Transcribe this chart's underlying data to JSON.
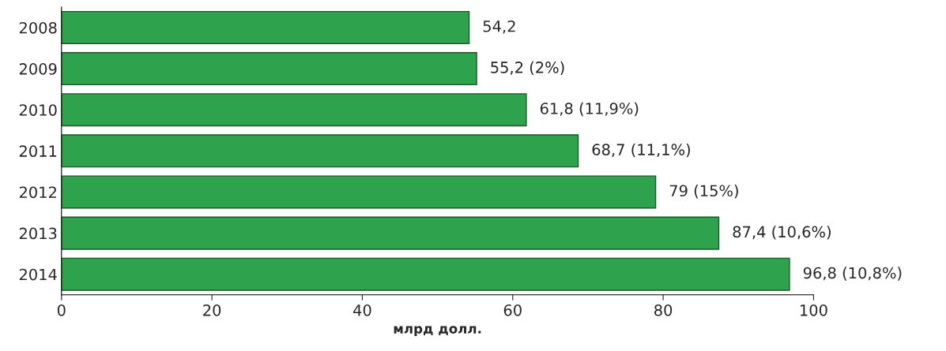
{
  "chart_data": {
    "type": "bar",
    "orientation": "horizontal",
    "xlabel": "млрд долл.",
    "categories": [
      "2008",
      "2009",
      "2010",
      "2011",
      "2012",
      "2013",
      "2014"
    ],
    "values": [
      54.2,
      55.2,
      61.8,
      68.7,
      79,
      87.4,
      96.8
    ],
    "value_labels": [
      "54,2",
      "55,2 (2%)",
      "61,8 (11,9%)",
      "68,7 (11,1%)",
      "79 (15%)",
      "87,4 (10,6%)",
      "96,8 (10,8%)"
    ],
    "color": "#2ea24c",
    "xlim": [
      0,
      100
    ],
    "xticks": [
      0,
      20,
      40,
      60,
      80,
      100
    ],
    "grid": false,
    "legend": false
  }
}
